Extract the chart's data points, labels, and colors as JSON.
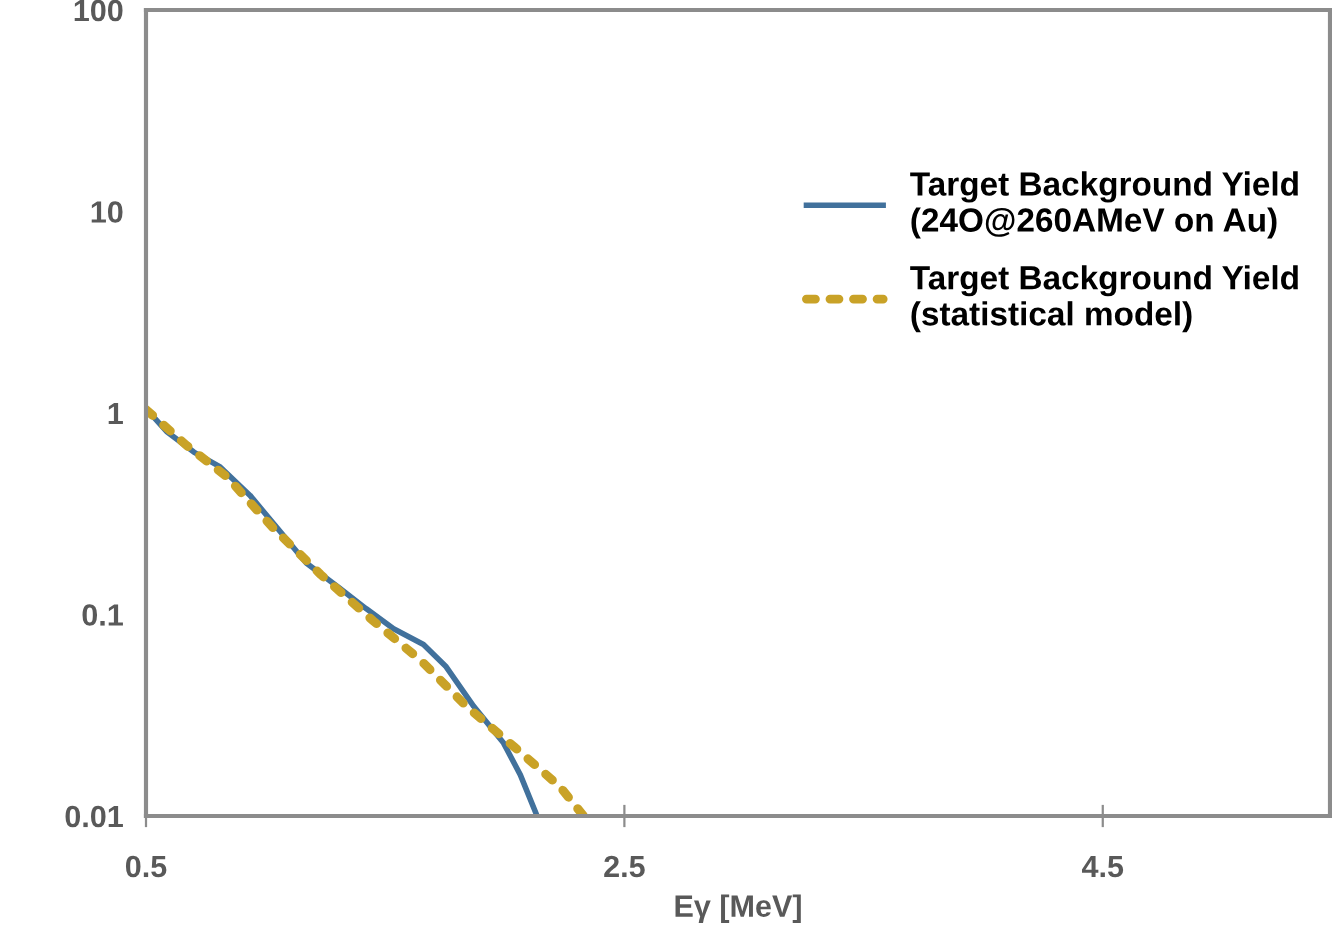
{
  "chart_data": {
    "type": "line",
    "xlabel": "Eγ [MeV]",
    "log": "y",
    "xlim": [
      0.5,
      5.45
    ],
    "xticks": [
      0.5,
      2.5,
      4.5
    ],
    "ylim": [
      0.01,
      100
    ],
    "yticks": [
      {
        "value": 0.01,
        "label": "0.01"
      },
      {
        "value": 0.1,
        "label": "0.1"
      },
      1,
      10,
      100
    ],
    "grid": false,
    "legend": "right",
    "marker": "none",
    "series": [
      {
        "name": "Target Background Yield\n(24O@260AMeV on Au)",
        "color": "#41719c",
        "line_style": "solid",
        "x": [
          0.5,
          0.586,
          0.7,
          0.81,
          0.935,
          1.047,
          1.17,
          1.31,
          1.42,
          1.535,
          1.66,
          1.755,
          1.87,
          1.995,
          2.065,
          2.135
        ],
        "values": [
          1.05,
          0.81,
          0.64,
          0.54,
          0.39,
          0.27,
          0.18,
          0.135,
          0.107,
          0.085,
          0.071,
          0.055,
          0.035,
          0.023,
          0.016,
          0.01
        ]
      },
      {
        "name": "Target Background Yield\n(statistical model)",
        "color": "#c9a227",
        "line_style": "dotted",
        "x": [
          0.5,
          0.67,
          0.84,
          1.03,
          1.23,
          1.45,
          1.65,
          1.84,
          2.04,
          2.23,
          2.33
        ],
        "values": [
          1.04,
          0.69,
          0.48,
          0.27,
          0.158,
          0.093,
          0.059,
          0.035,
          0.022,
          0.014,
          0.01
        ]
      }
    ]
  }
}
